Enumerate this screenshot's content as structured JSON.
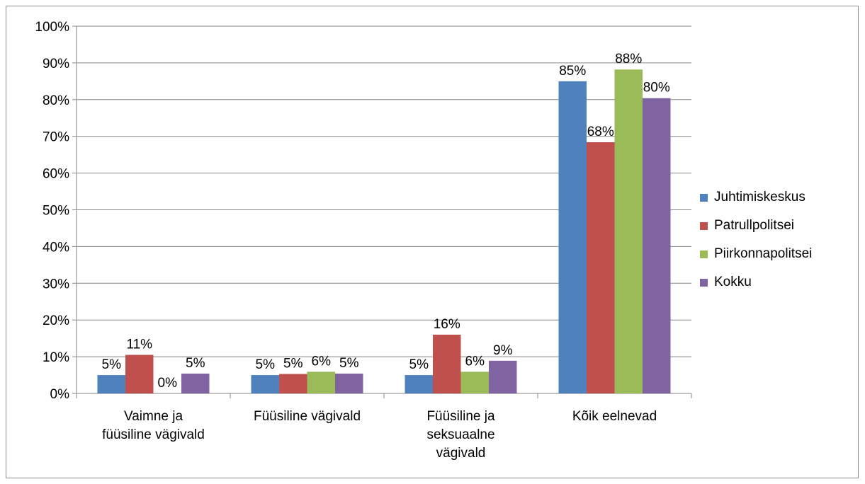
{
  "chart_data": {
    "type": "bar",
    "categories": [
      "Vaimne ja füüsiline vägivald",
      "Füüsiline vägivald",
      "Füüsiline ja seksuaalne vägivald",
      "Kõik eelnevad"
    ],
    "category_lines": [
      [
        "Vaimne ja",
        "füüsiline vägivald"
      ],
      [
        "Füüsiline vägivald"
      ],
      [
        "Füüsiline ja",
        "seksuaalne",
        "vägivald"
      ],
      [
        "Kõik eelnevad"
      ]
    ],
    "series": [
      {
        "name": "Juhtimiskeskus",
        "color": "#4f81bd",
        "values": [
          5,
          5,
          5,
          85
        ],
        "labels": [
          "5%",
          "5%",
          "5%",
          "85%"
        ]
      },
      {
        "name": "Patrullpolitsei",
        "color": "#c0504d",
        "values": [
          10.5,
          5.3,
          16,
          68.4
        ],
        "labels": [
          "11%",
          "5%",
          "16%",
          "68%"
        ]
      },
      {
        "name": "Piirkonnapolitsei",
        "color": "#9bbb59",
        "values": [
          0,
          5.9,
          5.9,
          88.2
        ],
        "labels": [
          "0%",
          "6%",
          "6%",
          "88%"
        ]
      },
      {
        "name": "Kokku",
        "color": "#8064a2",
        "values": [
          5.4,
          5.4,
          8.9,
          80.4
        ],
        "labels": [
          "5%",
          "5%",
          "9%",
          "80%"
        ]
      }
    ],
    "ylim": [
      0,
      100
    ],
    "yticks": [
      "0%",
      "10%",
      "20%",
      "30%",
      "40%",
      "50%",
      "60%",
      "70%",
      "80%",
      "90%",
      "100%"
    ],
    "grid": true,
    "legend_position": "right"
  }
}
